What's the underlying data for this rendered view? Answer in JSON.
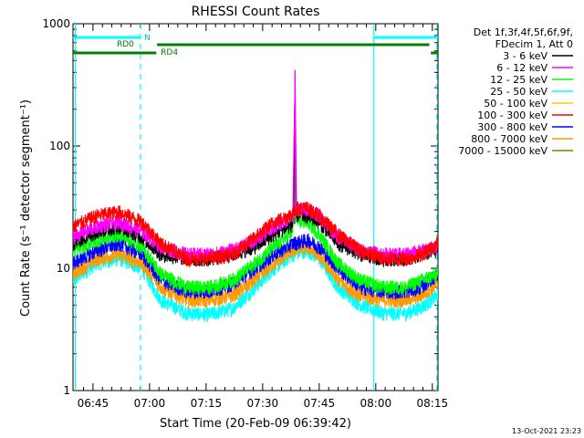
{
  "chart_data": {
    "type": "line",
    "title": "RHESSI Count Rates",
    "xlabel": "Start Time (20-Feb-09 06:39:42)",
    "ylabel": "Count Rate (s⁻¹ detector segment⁻¹)",
    "yscale": "log",
    "ylim": [
      1,
      1000
    ],
    "xlim_minutes": [
      39.7,
      136.5
    ],
    "x_ticks": [
      {
        "min": 45,
        "label": "06:45"
      },
      {
        "min": 60,
        "label": "07:00"
      },
      {
        "min": 75,
        "label": "07:15"
      },
      {
        "min": 90,
        "label": "07:30"
      },
      {
        "min": 105,
        "label": "07:45"
      },
      {
        "min": 120,
        "label": "08:00"
      },
      {
        "min": 135,
        "label": "08:15"
      }
    ],
    "y_ticks": [
      {
        "value": 1,
        "label": "1"
      },
      {
        "value": 10,
        "label": "10"
      },
      {
        "value": 100,
        "label": "100"
      },
      {
        "value": 1000,
        "label": "1000"
      }
    ],
    "legend": {
      "position": "right",
      "header": [
        "Det 1f,3f,4f,5f,6f,9f,",
        "FDecim 1, Att 0"
      ],
      "entries": [
        {
          "label": "3 - 6 keV",
          "color": "#000000"
        },
        {
          "label": "6 - 12 keV",
          "color": "#ff00ff"
        },
        {
          "label": "12 - 25 keV",
          "color": "#00ff00"
        },
        {
          "label": "25 - 50 keV",
          "color": "#00ffff"
        },
        {
          "label": "50 - 100 keV",
          "color": "#ffcc00"
        },
        {
          "label": "100 - 300 keV",
          "color": "#ff0000"
        },
        {
          "label": "300 - 800 keV",
          "color": "#0000ff"
        },
        {
          "label": "800 - 7000 keV",
          "color": "#ff9900"
        },
        {
          "label": "7000 - 15000 keV",
          "color": "#808000"
        }
      ]
    },
    "series": [
      {
        "name": "100 - 300 keV",
        "color": "#ff0000",
        "x": [
          39.7,
          46,
          52,
          58,
          63,
          70,
          76,
          82,
          88,
          93,
          98,
          99,
          102,
          105,
          110,
          116,
          122,
          128,
          132,
          136.5
        ],
        "y": [
          22,
          27,
          29,
          24,
          16,
          12,
          12,
          13,
          18,
          24,
          28,
          31,
          31,
          27,
          19,
          14,
          12,
          12,
          13,
          16
        ]
      },
      {
        "name": "6 - 12 keV",
        "color": "#ff00ff",
        "x": [
          39.7,
          46,
          52,
          58,
          63,
          70,
          76,
          82,
          88,
          93,
          98,
          98.6,
          99,
          102,
          105,
          110,
          116,
          122,
          128,
          132,
          136.5
        ],
        "y": [
          18,
          22,
          24,
          20,
          15,
          13,
          13,
          14,
          17,
          22,
          27,
          420,
          30,
          31,
          27,
          18,
          14,
          13,
          13,
          14,
          15
        ]
      },
      {
        "name": "3 - 6 keV",
        "color": "#000000",
        "x": [
          39.7,
          46,
          52,
          58,
          63,
          70,
          76,
          82,
          88,
          93,
          98,
          98.5,
          99,
          102,
          105,
          110,
          116,
          122,
          128,
          132,
          136.5
        ],
        "y": [
          16,
          20,
          22,
          18,
          13,
          12,
          12,
          13,
          15,
          19,
          23,
          200,
          27,
          27,
          24,
          16,
          13,
          12,
          12,
          13,
          14
        ]
      },
      {
        "name": "12 - 25 keV",
        "color": "#00ff00",
        "x": [
          39.7,
          46,
          52,
          58,
          63,
          70,
          76,
          82,
          88,
          93,
          98,
          98.5,
          99,
          102,
          105,
          110,
          116,
          122,
          128,
          132,
          136.5
        ],
        "y": [
          14,
          17,
          19,
          15,
          9,
          7,
          7,
          8,
          11,
          15,
          20,
          60,
          24,
          24,
          19,
          11,
          8,
          7,
          7,
          8,
          9
        ]
      },
      {
        "name": "300 - 800 keV",
        "color": "#0000ff",
        "x": [
          39.7,
          46,
          52,
          58,
          63,
          70,
          76,
          82,
          88,
          93,
          98,
          102,
          105,
          110,
          116,
          122,
          128,
          132,
          136.5
        ],
        "y": [
          11,
          14,
          16,
          13,
          8,
          6.5,
          6.5,
          7.5,
          10,
          13,
          16,
          17,
          15,
          10,
          7,
          6.5,
          6.5,
          7,
          9
        ]
      },
      {
        "name": "800 - 7000 keV",
        "color": "#ff9900",
        "x": [
          39.7,
          46,
          52,
          58,
          63,
          70,
          76,
          82,
          88,
          93,
          98,
          102,
          105,
          110,
          116,
          122,
          128,
          132,
          136.5
        ],
        "y": [
          9,
          12,
          13,
          11,
          7,
          5.5,
          5.5,
          6,
          8,
          11,
          14,
          15,
          13,
          8,
          6,
          5.5,
          5.5,
          6,
          7.5
        ]
      },
      {
        "name": "25 - 50 keV",
        "color": "#00ffff",
        "x": [
          39.7,
          46,
          52,
          58,
          63,
          70,
          76,
          82,
          88,
          93,
          98,
          102,
          105,
          110,
          116,
          122,
          128,
          132,
          136.5
        ],
        "y": [
          8,
          11,
          12,
          10,
          5.5,
          4.3,
          4.2,
          4.7,
          7,
          10,
          13,
          14,
          12,
          7,
          5,
          4.3,
          4.3,
          4.8,
          6
        ]
      }
    ],
    "attenuator_states": [
      {
        "label": "N",
        "color": "#00ffff",
        "segments": [
          [
            39.7,
            57.6
          ],
          [
            119.5,
            136.5
          ]
        ]
      },
      {
        "label": "RD0",
        "color": "#008000",
        "segments": [
          [
            62,
            134.2
          ]
        ]
      },
      {
        "label": "RD4",
        "color": "#008000",
        "segments": [
          [
            39.7,
            61.8
          ],
          [
            134.6,
            136.5
          ]
        ]
      }
    ],
    "vertical_lines": [
      {
        "min": 40.3,
        "style": "solid",
        "color": "#00ffff"
      },
      {
        "min": 57.6,
        "style": "dashed",
        "color": "#00ffff"
      },
      {
        "min": 119.5,
        "style": "solid",
        "color": "#00ffff"
      },
      {
        "min": 136.2,
        "style": "dashed",
        "color": "#00ffff"
      }
    ]
  },
  "footer": {
    "date": "13-Oct-2021 23:23"
  }
}
